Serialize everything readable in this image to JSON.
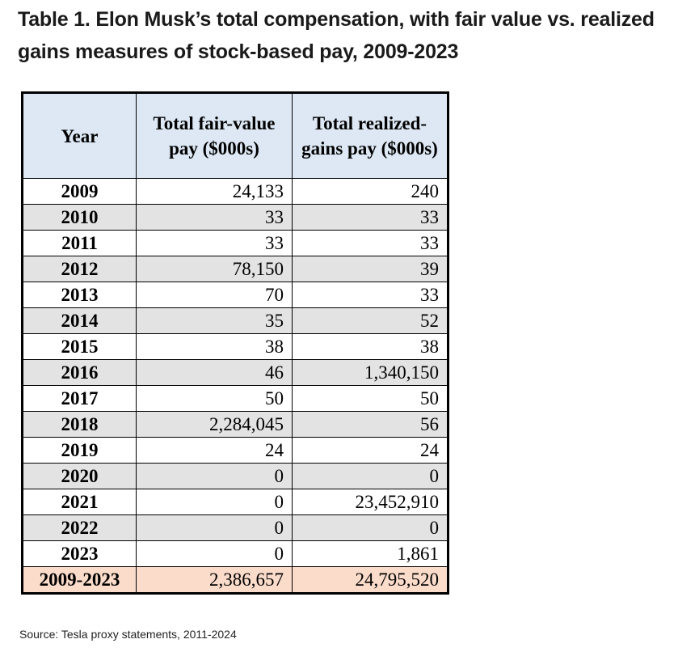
{
  "title": "Table 1. Elon Musk’s total compensation, with fair value vs. realized gains measures of stock-based pay, 2009-2023",
  "table": {
    "headers": [
      "Year",
      "Total fair-value pay ($000s)",
      "Total realized-gains pay ($000s)"
    ],
    "rows": [
      {
        "year": "2009",
        "fair_value": "24,133",
        "realized": "240",
        "shaded": false
      },
      {
        "year": "2010",
        "fair_value": "33",
        "realized": "33",
        "shaded": true
      },
      {
        "year": "2011",
        "fair_value": "33",
        "realized": "33",
        "shaded": false
      },
      {
        "year": "2012",
        "fair_value": "78,150",
        "realized": "39",
        "shaded": true
      },
      {
        "year": "2013",
        "fair_value": "70",
        "realized": "33",
        "shaded": false
      },
      {
        "year": "2014",
        "fair_value": "35",
        "realized": "52",
        "shaded": true
      },
      {
        "year": "2015",
        "fair_value": "38",
        "realized": "38",
        "shaded": false
      },
      {
        "year": "2016",
        "fair_value": "46",
        "realized": "1,340,150",
        "shaded": true
      },
      {
        "year": "2017",
        "fair_value": "50",
        "realized": "50",
        "shaded": false
      },
      {
        "year": "2018",
        "fair_value": "2,284,045",
        "realized": "56",
        "shaded": true
      },
      {
        "year": "2019",
        "fair_value": "24",
        "realized": "24",
        "shaded": false
      },
      {
        "year": "2020",
        "fair_value": "0",
        "realized": "0",
        "shaded": true
      },
      {
        "year": "2021",
        "fair_value": "0",
        "realized": "23,452,910",
        "shaded": false
      },
      {
        "year": "2022",
        "fair_value": "0",
        "realized": "0",
        "shaded": true
      },
      {
        "year": "2023",
        "fair_value": "0",
        "realized": "1,861",
        "shaded": false
      }
    ],
    "total": {
      "year": "2009-2023",
      "fair_value": "2,386,657",
      "realized": "24,795,520"
    }
  },
  "source": "Source: Tesla proxy statements, 2011-2024",
  "colors": {
    "header_bg": "#dde8f4",
    "shaded_row_bg": "#e3e3e3",
    "total_row_bg": "#fbdccb",
    "border": "#000000"
  }
}
